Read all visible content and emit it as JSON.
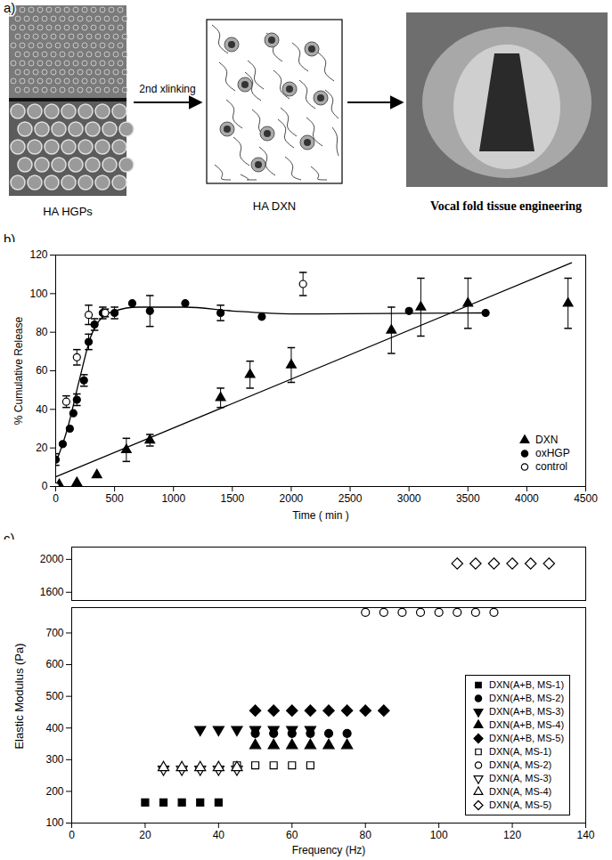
{
  "panel_a": {
    "label": "a)",
    "left_image_caption": "HA HGPs",
    "arrow_text": "2nd xlinking",
    "network_caption": "HA DXN",
    "right_image_caption": "Vocal fold tissue engineering"
  },
  "chart_data": [
    {
      "type": "scatter",
      "title": "b)",
      "xlabel": "Time ( min )",
      "ylabel": "% Cumulative Release",
      "xlim": [
        0,
        4500
      ],
      "xticks": [
        0,
        500,
        1000,
        1500,
        2000,
        2500,
        3000,
        3500,
        4000,
        4500
      ],
      "ylim": [
        0,
        120
      ],
      "yticks": [
        0,
        20,
        40,
        60,
        80,
        100,
        120
      ],
      "grid": false,
      "legend": "bottom-right",
      "series": [
        {
          "name": "DXN",
          "color": "#000000",
          "marker": "triangle",
          "x": [
            30,
            180,
            350,
            600,
            800,
            1400,
            1650,
            2000,
            2850,
            3100,
            3500,
            4350
          ],
          "values": [
            1,
            2,
            6,
            19,
            24,
            46,
            58,
            63,
            81,
            93,
            95,
            95
          ],
          "error": [
            null,
            null,
            null,
            6,
            3,
            5,
            7,
            9,
            12,
            15,
            13,
            13
          ],
          "fit": {
            "x": [
              0,
              4380
            ],
            "values": [
              5,
              116
            ]
          }
        },
        {
          "name": "oxHGP",
          "color": "#000000",
          "marker": "circle",
          "x": [
            0,
            60,
            120,
            150,
            180,
            240,
            280,
            330,
            400,
            500,
            650,
            800,
            1100,
            1400,
            1750,
            3000,
            3650
          ],
          "values": [
            14,
            22,
            30,
            38,
            45,
            55,
            75,
            84,
            90,
            90,
            95,
            91,
            95,
            90,
            88,
            91,
            90
          ],
          "error": [
            3,
            null,
            null,
            null,
            3,
            3,
            4,
            3,
            3,
            3,
            null,
            8,
            null,
            4,
            null,
            null,
            null
          ],
          "fit": {
            "x": [
              0,
              100,
              200,
              300,
              400,
              500,
              700,
              1100,
              1500,
              2000,
              3650
            ],
            "values": [
              12,
              30,
              55,
              78,
              88,
              91,
              93,
              93,
              91,
              89.5,
              90
            ]
          }
        },
        {
          "name": "control",
          "color": "#000000",
          "marker": "circle-open",
          "x": [
            0,
            90,
            180,
            280,
            420,
            2100
          ],
          "values": [
            0,
            44,
            67,
            89,
            90,
            105
          ],
          "error": [
            null,
            3,
            4,
            5,
            2,
            6
          ]
        }
      ]
    },
    {
      "type": "scatter",
      "title": "c)",
      "xlabel": "Frequency (Hz)",
      "ylabel": "Elastic Modulus (Pa)",
      "xlim": [
        0,
        140
      ],
      "xticks": [
        0,
        20,
        40,
        60,
        80,
        100,
        120,
        140
      ],
      "ylim": [
        100,
        2150
      ],
      "y_break": [
        780,
        1500
      ],
      "yticks": [
        100,
        200,
        300,
        400,
        500,
        600,
        700,
        1600,
        2000
      ],
      "grid": false,
      "legend": "bottom-right",
      "series": [
        {
          "name": "DXN(A+B, MS-1)",
          "color": "#000000",
          "marker": "square",
          "x": [
            20,
            25,
            30,
            35,
            40
          ],
          "values": [
            165,
            165,
            165,
            165,
            165
          ]
        },
        {
          "name": "DXN(A+B, MS-2)",
          "color": "#000000",
          "marker": "circle",
          "x": [
            50,
            55,
            60,
            65,
            70,
            75
          ],
          "values": [
            383,
            383,
            383,
            383,
            383,
            383
          ]
        },
        {
          "name": "DXN(A+B, MS-3)",
          "color": "#000000",
          "marker": "triangle-down",
          "x": [
            35,
            40,
            45,
            50,
            55,
            60,
            65
          ],
          "values": [
            395,
            395,
            395,
            395,
            395,
            395,
            395
          ]
        },
        {
          "name": "DXN(A+B, MS-4)",
          "color": "#000000",
          "marker": "triangle",
          "x": [
            50,
            55,
            60,
            65,
            70,
            75
          ],
          "values": [
            345,
            345,
            345,
            345,
            345,
            345
          ]
        },
        {
          "name": "DXN(A+B, MS-5)",
          "color": "#000000",
          "marker": "diamond",
          "x": [
            50,
            55,
            60,
            65,
            70,
            75,
            80,
            85
          ],
          "values": [
            455,
            455,
            455,
            455,
            455,
            455,
            455,
            455
          ]
        },
        {
          "name": "DXN(A, MS-1)",
          "color": "#000000",
          "marker": "square-open",
          "x": [
            45,
            50,
            55,
            60,
            65
          ],
          "values": [
            282,
            282,
            282,
            282,
            282
          ]
        },
        {
          "name": "DXN(A, MS-2)",
          "color": "#000000",
          "marker": "circle-open",
          "x": [
            80,
            85,
            90,
            95,
            100,
            105,
            110,
            115
          ],
          "values": [
            765,
            765,
            765,
            765,
            765,
            765,
            765,
            765
          ]
        },
        {
          "name": "DXN(A, MS-3)",
          "color": "#000000",
          "marker": "triangle-down-open",
          "x": [
            25,
            30,
            35,
            40,
            45
          ],
          "values": [
            270,
            270,
            270,
            270,
            270
          ]
        },
        {
          "name": "DXN(A, MS-4)",
          "color": "#000000",
          "marker": "triangle-open",
          "x": [
            25,
            30,
            35,
            40,
            45
          ],
          "values": [
            275,
            275,
            275,
            275,
            275
          ]
        },
        {
          "name": "DXN(A, MS-5)",
          "color": "#000000",
          "marker": "diamond-open",
          "x": [
            105,
            110,
            115,
            120,
            125,
            130
          ],
          "values": [
            1950,
            1950,
            1950,
            1950,
            1950,
            1950
          ]
        }
      ]
    }
  ]
}
